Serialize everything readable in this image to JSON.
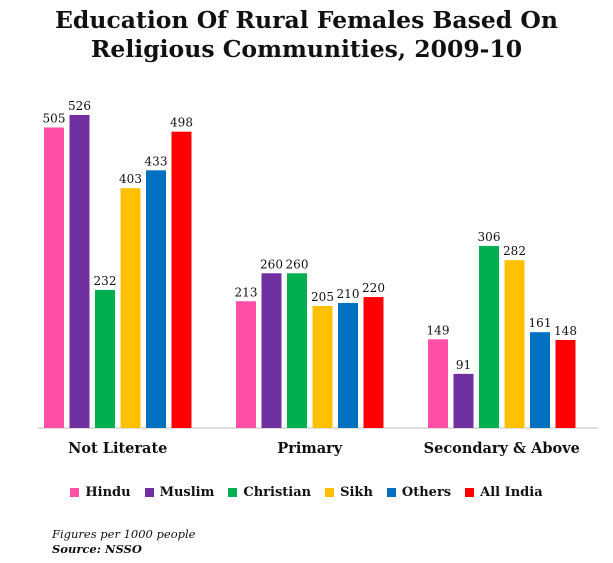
{
  "title": {
    "line1": "Education Of Rural Females Based On",
    "line2": "Religious Communities, 2009-10"
  },
  "chart_data": {
    "type": "bar",
    "title": "Education Of Rural Females Based On Religious Communities, 2009-10",
    "categories": [
      "Not Literate",
      "Primary",
      "Secondary & Above"
    ],
    "series": [
      {
        "name": "Hindu",
        "color": "#ff4fa7",
        "values": [
          505,
          213,
          149
        ]
      },
      {
        "name": "Muslim",
        "color": "#7030a0",
        "values": [
          526,
          260,
          91
        ]
      },
      {
        "name": "Christian",
        "color": "#00b050",
        "values": [
          232,
          260,
          306
        ]
      },
      {
        "name": "Sikh",
        "color": "#ffc000",
        "values": [
          403,
          205,
          282
        ]
      },
      {
        "name": "Others",
        "color": "#0070c0",
        "values": [
          433,
          210,
          161
        ]
      },
      {
        "name": "All India",
        "color": "#ff0000",
        "values": [
          498,
          220,
          148
        ]
      }
    ],
    "ylim": [
      0,
      526
    ],
    "grid": false,
    "data_labels": true,
    "legend_position": "bottom"
  },
  "footer": {
    "note": "Figures per 1000 people",
    "source": "Source: NSSO"
  }
}
